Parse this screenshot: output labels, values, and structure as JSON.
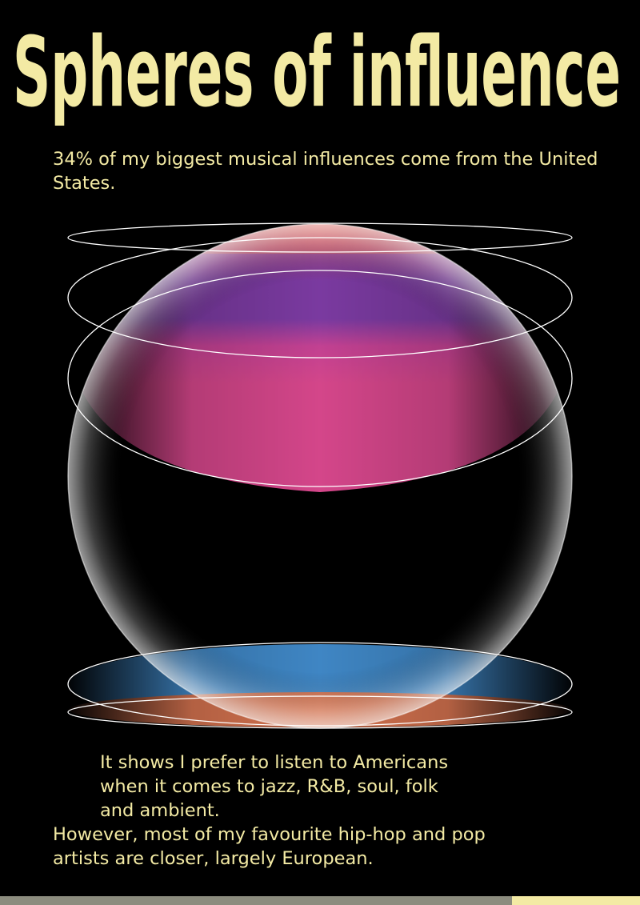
{
  "title": "Spheres of influence",
  "subtitle": "34% of my biggest musical influences come from the United States.",
  "caption": {
    "lines_indented": [
      "It shows I prefer to listen to Americans",
      "when it comes to jazz, R&B, soul, folk",
      "and ambient."
    ],
    "lines_flush": [
      "However, most of my favourite hip-hop and pop",
      "artists are closer, largely European."
    ]
  },
  "colors": {
    "background": "#000000",
    "text": "#f3eaa4",
    "band_red": "#d85a4e",
    "band_purple": "#7a3aa0",
    "band_pink": "#d4468a",
    "band_blue": "#3f86c4",
    "band_orange": "#d2714e",
    "footer_grey": "#8c8c7e",
    "footer_yellow": "#f3eaa4"
  },
  "influence": {
    "united_states_percent": 34
  }
}
